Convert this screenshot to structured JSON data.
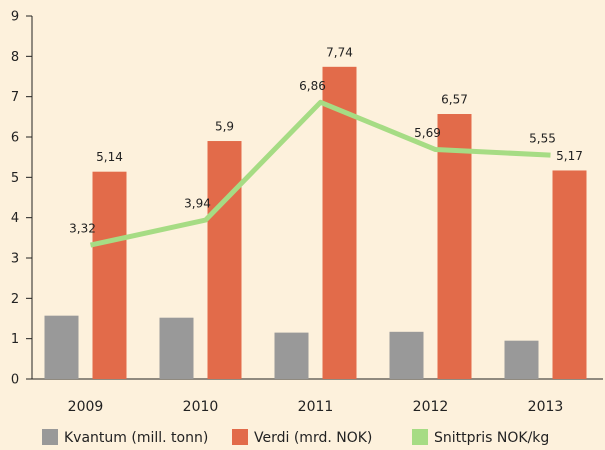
{
  "chart_data": {
    "type": "bar",
    "categories": [
      "2009",
      "2010",
      "2011",
      "2012",
      "2013"
    ],
    "series": [
      {
        "name": "Kvantum (mill. tonn)",
        "type": "bar",
        "color": "#999999",
        "values": [
          1.57,
          1.52,
          1.15,
          1.17,
          0.95
        ]
      },
      {
        "name": "Verdi (mrd. NOK)",
        "type": "bar",
        "color": "#e26b4a",
        "values": [
          5.14,
          5.9,
          7.74,
          6.57,
          5.17
        ],
        "value_labels": [
          "5,14",
          "5,9",
          "7,74",
          "6,57",
          "5,17"
        ]
      },
      {
        "name": "Snittpris NOK/kg",
        "type": "line",
        "color": "#a6dc84",
        "values": [
          3.32,
          3.94,
          6.86,
          5.69,
          5.55
        ],
        "value_labels": [
          "3,32",
          "3,94",
          "6,86",
          "5,69",
          "5,55"
        ]
      }
    ],
    "ylim": [
      0,
      9
    ],
    "yticks": [
      0,
      1,
      2,
      3,
      4,
      5,
      6,
      7,
      8,
      9
    ],
    "grid": false,
    "legend": "bottom"
  }
}
